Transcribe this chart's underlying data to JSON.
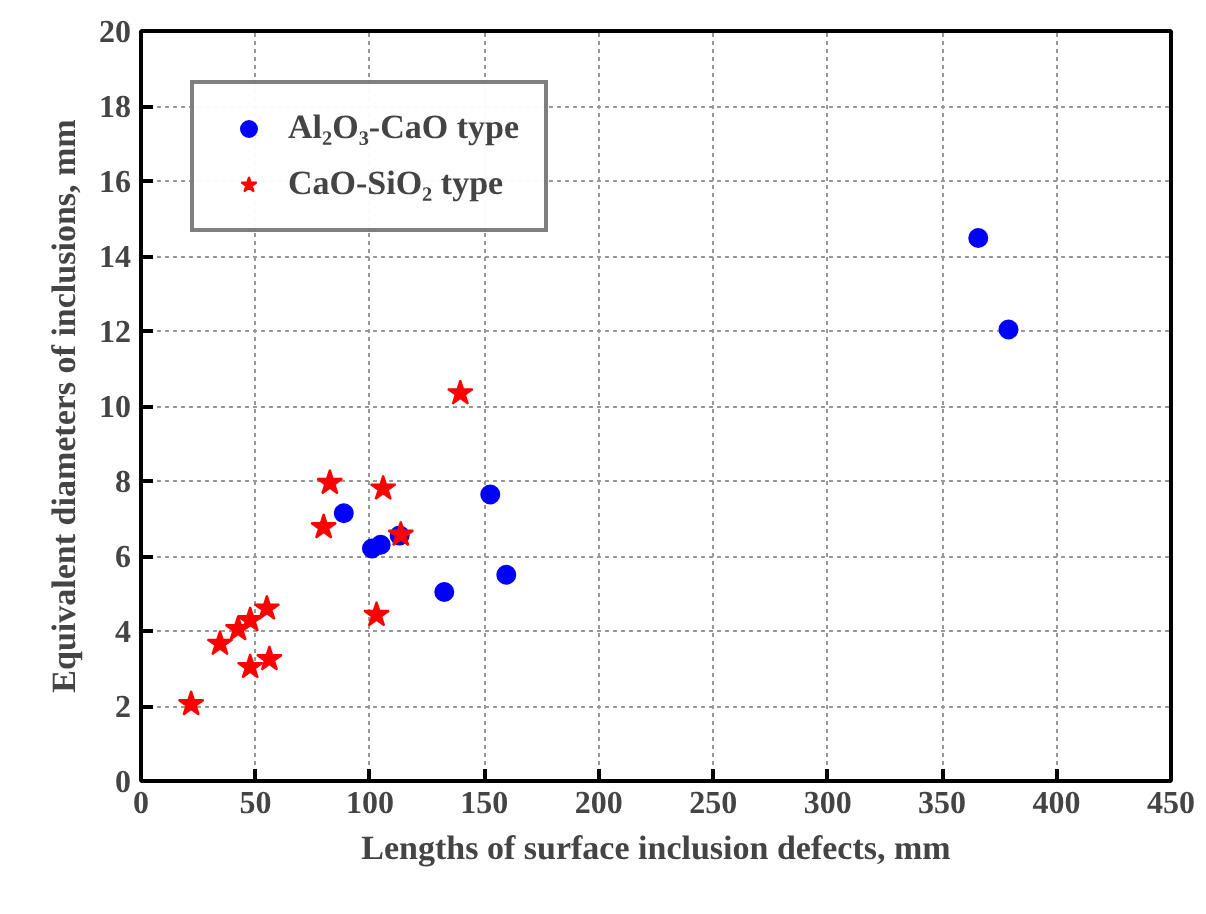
{
  "chart_data": {
    "type": "scatter",
    "xlabel": "Lengths of surface inclusion defects, mm",
    "ylabel": "Equivalent diameters of inclusions, mm",
    "xlim": [
      0,
      450
    ],
    "xticks": [
      0,
      50,
      100,
      150,
      200,
      250,
      300,
      350,
      400,
      450
    ],
    "ylim": [
      0,
      20
    ],
    "yticks": [
      0,
      2,
      4,
      6,
      8,
      10,
      12,
      14,
      16,
      18,
      20
    ],
    "grid": true,
    "legend": "top left",
    "series": [
      {
        "name": "Al₂O₃-CaO type",
        "color": "#0000ff",
        "marker": "circle",
        "x": [
          88.6,
          100.9,
          104.7,
          113,
          132.5,
          152.6,
          159.6,
          365.8,
          379
        ],
        "values": [
          7.14,
          6.2,
          6.3,
          6.55,
          5.04,
          7.64,
          5.5,
          14.48,
          12.04
        ]
      },
      {
        "name": "CaO-SiO₂ type",
        "color": "#ff0000",
        "marker": "star",
        "x": [
          21.9,
          34.5,
          42.4,
          47.7,
          55,
          47.7,
          56.1,
          79.8,
          82.5,
          105.8,
          113.5,
          102.9,
          139.5
        ],
        "values": [
          2.05,
          3.66,
          4.05,
          4.29,
          4.6,
          3.04,
          3.25,
          6.77,
          7.95,
          7.8,
          6.57,
          4.43,
          10.34
        ]
      }
    ]
  }
}
